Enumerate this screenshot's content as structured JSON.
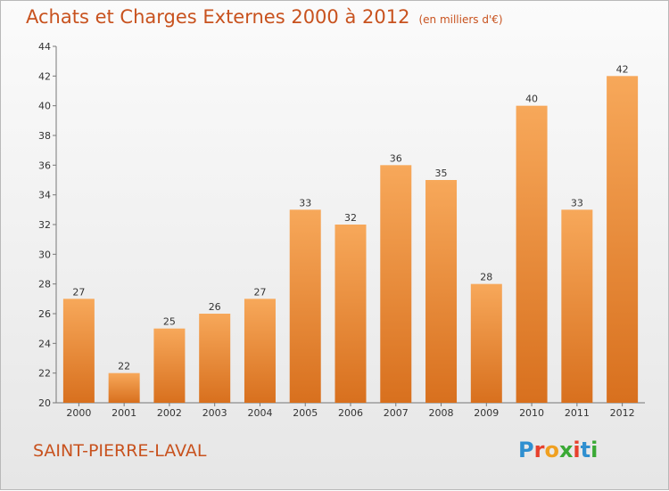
{
  "title": "Achats et Charges Externes 2000 à 2012",
  "subtitle": "(en milliers d'€)",
  "commune": "SAINT-PIERRE-LAVAL",
  "logo": {
    "letters": [
      "P",
      "r",
      "o",
      "x",
      "i",
      "t",
      "i"
    ],
    "colors": [
      "#2f8fd0",
      "#e7402d",
      "#f0a020",
      "#3aa935",
      "#e7402d",
      "#2f8fd0",
      "#3aa935"
    ]
  },
  "colors": {
    "accent": "#c8521e",
    "bar_light": "#f7a85a",
    "bar_dark": "#d8701e"
  },
  "chart_data": {
    "type": "bar",
    "categories": [
      "2000",
      "2001",
      "2002",
      "2003",
      "2004",
      "2005",
      "2006",
      "2007",
      "2008",
      "2009",
      "2010",
      "2011",
      "2012"
    ],
    "values": [
      27,
      22,
      25,
      26,
      27,
      33,
      32,
      36,
      35,
      28,
      40,
      33,
      42
    ],
    "yticks": [
      20,
      22,
      24,
      26,
      28,
      30,
      32,
      34,
      36,
      38,
      40,
      42,
      44
    ],
    "ylim": [
      20,
      44
    ],
    "grid": false,
    "title": "Achats et Charges Externes 2000 à 2012",
    "xlabel": "",
    "ylabel": ""
  }
}
